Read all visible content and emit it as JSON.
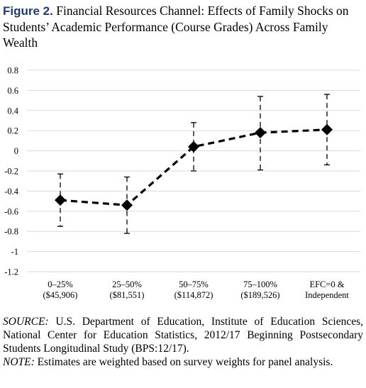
{
  "title": {
    "figure_label": "Figure 2.",
    "text": "Financial Resources Channel: Effects of Family Shocks on Students’ Academic Performance (Course Grades) Across Family Wealth"
  },
  "chart_data": {
    "type": "line",
    "categories": [
      [
        "0–25%",
        "($45,906)"
      ],
      [
        "25–50%",
        "($81,551)"
      ],
      [
        "50–75%",
        "($114,872)"
      ],
      [
        "75–100%",
        "($189,526)"
      ],
      [
        "EFC=0 &",
        "Independent"
      ]
    ],
    "values": [
      -0.49,
      -0.54,
      0.04,
      0.18,
      0.21
    ],
    "error_upper": [
      -0.23,
      -0.26,
      0.28,
      0.54,
      0.56
    ],
    "error_lower": [
      -0.75,
      -0.82,
      -0.2,
      -0.19,
      -0.14
    ],
    "ylim": [
      -1.2,
      0.8
    ],
    "yticks": [
      "0.8",
      "0.6",
      "0.4",
      "0.2",
      "0",
      "-0.2",
      "-0.4",
      "-0.6",
      "-0.8",
      "-1",
      "-1.2"
    ],
    "ytick_values": [
      0.8,
      0.6,
      0.4,
      0.2,
      0,
      -0.2,
      -0.4,
      -0.6,
      -0.8,
      -1,
      -1.2
    ],
    "grid": true,
    "line_style": "dashed",
    "marker": "diamond"
  },
  "notes": {
    "source_label": "SOURCE:",
    "source_text": " U.S. Department of Education, Institute of Education Sciences, National Center for Education Statistics, 2012/17 Beginning Postsecondary Students Longitudinal Study (BPS:12/17).",
    "note_label": "NOTE:",
    "note_text": " Estimates are weighted based on survey weights for panel analysis."
  }
}
